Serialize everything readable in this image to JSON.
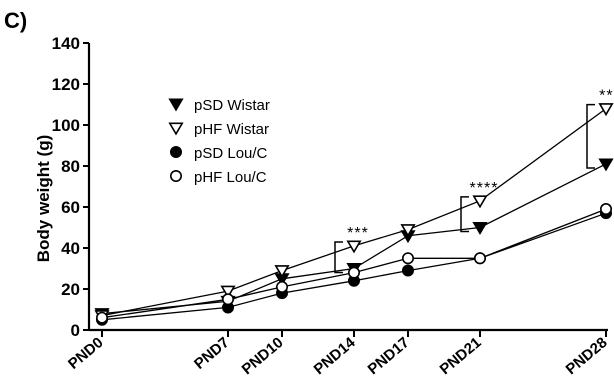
{
  "panel_label": "C)",
  "chart_data": {
    "type": "line",
    "title": "",
    "xlabel": "",
    "ylabel": "Body weight (g)",
    "x": [
      0,
      7,
      10,
      14,
      17,
      21,
      28
    ],
    "categories": [
      "PND0",
      "PND7",
      "PND10",
      "PND14",
      "PND17",
      "PND21",
      "PND28"
    ],
    "ylim": [
      0,
      140
    ],
    "yticks": [
      0,
      20,
      40,
      60,
      80,
      100,
      120,
      140
    ],
    "grid": false,
    "legend_position": "upper-left",
    "series": [
      {
        "name": "pSD Wistar",
        "marker": "triangle-down-filled",
        "values": [
          8,
          14,
          25,
          30,
          46,
          50,
          81
        ]
      },
      {
        "name": "pHF Wistar",
        "marker": "triangle-down-open",
        "values": [
          7,
          19,
          29,
          41,
          49,
          63,
          108
        ]
      },
      {
        "name": "pSD Lou/C",
        "marker": "circle-filled",
        "values": [
          5,
          11,
          18,
          24,
          29,
          35,
          57
        ]
      },
      {
        "name": "pHF Lou/C",
        "marker": "circle-open",
        "values": [
          6,
          15,
          21,
          28,
          35,
          35,
          59
        ]
      }
    ],
    "annotations": [
      {
        "text": "***",
        "x": 14,
        "bracket": [
          30,
          41
        ]
      },
      {
        "text": "****",
        "x": 21,
        "bracket": [
          50,
          63
        ]
      },
      {
        "text": "***",
        "x": 28,
        "bracket": [
          81,
          108
        ]
      }
    ]
  }
}
